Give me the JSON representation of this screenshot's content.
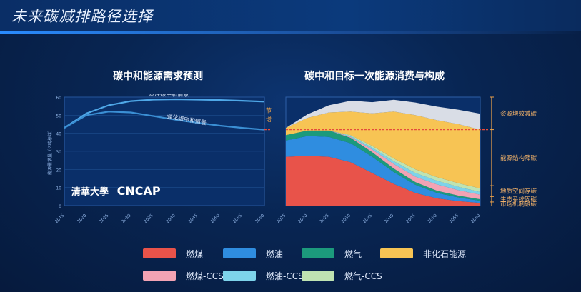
{
  "page_title": "未来碳减排路径选择",
  "logo": {
    "text": "CNCAP",
    "university": "清華大學"
  },
  "chart_data": [
    {
      "type": "line",
      "title": "碳中和能源需求预测",
      "x": [
        2015,
        2020,
        2025,
        2030,
        2035,
        2040,
        2045,
        2050,
        2055,
        2060
      ],
      "ylim": [
        0,
        60
      ],
      "yticks": [
        0,
        10,
        20,
        30,
        40,
        50,
        60
      ],
      "ylabel": "能源需求量（亿吨标煤）",
      "series": [
        {
          "name": "基准碳中和情景",
          "values": [
            43,
            51,
            55.5,
            57.8,
            58.6,
            58.8,
            58.6,
            58.4,
            58.0,
            57.5
          ]
        },
        {
          "name": "强化碳中和情景",
          "values": [
            43,
            50,
            52,
            51.5,
            49.5,
            47.5,
            45.8,
            44.2,
            43.0,
            42.0
          ]
        }
      ],
      "annotation": "节能增效"
    },
    {
      "type": "area",
      "title": "碳中和目标一次能源消费与构成",
      "x": [
        2015,
        2020,
        2025,
        2030,
        2035,
        2040,
        2045,
        2050,
        2055,
        2060
      ],
      "ylim": [
        0,
        60
      ],
      "series": [
        {
          "name": "燃煤",
          "values": [
            27,
            27.5,
            27,
            24,
            18,
            12,
            7,
            4,
            2.5,
            1.5
          ]
        },
        {
          "name": "燃油",
          "values": [
            9,
            11,
            11,
            10.5,
            9,
            6.5,
            4.5,
            3,
            2,
            1.2
          ]
        },
        {
          "name": "燃气",
          "values": [
            3,
            3,
            3.5,
            3,
            2.5,
            2,
            1.5,
            1.2,
            1,
            0.8
          ]
        },
        {
          "name": "燃煤-CCS",
          "values": [
            0,
            0,
            0,
            0.5,
            1.5,
            2.5,
            3,
            3.5,
            3,
            2.5
          ]
        },
        {
          "name": "燃油-CCS",
          "values": [
            0,
            0,
            0,
            0.5,
            1,
            1.5,
            2,
            2,
            1.8,
            1.5
          ]
        },
        {
          "name": "燃气-CCS",
          "values": [
            0,
            0,
            0,
            0.5,
            1,
            1.5,
            2,
            2,
            2,
            2
          ]
        },
        {
          "name": "非化石能源",
          "values": [
            4,
            7,
            10,
            13,
            18,
            26,
            30,
            31.5,
            32.7,
            32.5
          ]
        },
        {
          "name": "资源增效减碳",
          "values": [
            0,
            2,
            4,
            6,
            6.2,
            6.5,
            7,
            7.5,
            8,
            8.8
          ]
        }
      ],
      "reference_line": 42,
      "right_labels": [
        "资源增效减碳",
        "能源结构降碳",
        "地质空间存碳",
        "生态系统固碳",
        "市场机制融碳"
      ]
    }
  ],
  "legend": [
    {
      "label": "燃煤",
      "color": "#e8534a"
    },
    {
      "label": "燃油",
      "color": "#2f8de0"
    },
    {
      "label": "燃气",
      "color": "#1c9a7c"
    },
    {
      "label": "非化石能源",
      "color": "#f7c454"
    },
    {
      "label": "燃煤-CCS",
      "color": "#f2a3b4"
    },
    {
      "label": "燃油-CCS",
      "color": "#7dd3ea"
    },
    {
      "label": "燃气-CCS",
      "color": "#bfe3b2"
    }
  ]
}
